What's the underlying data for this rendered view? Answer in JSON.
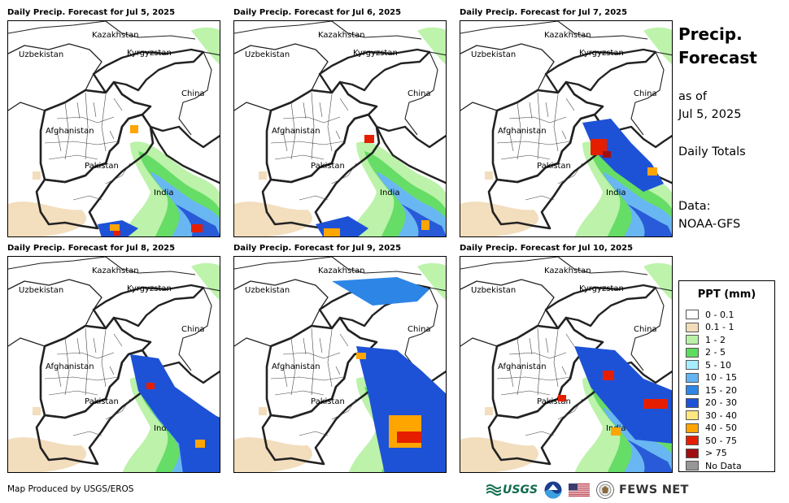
{
  "panels": [
    {
      "title": "Daily Precip. Forecast for Jul 5, 2025"
    },
    {
      "title": "Daily Precip. Forecast for Jul 6, 2025"
    },
    {
      "title": "Daily Precip. Forecast for Jul 7, 2025"
    },
    {
      "title": "Daily Precip. Forecast for Jul 8, 2025"
    },
    {
      "title": "Daily Precip. Forecast for Jul 9, 2025"
    },
    {
      "title": "Daily Precip. Forecast for Jul 10, 2025"
    }
  ],
  "map_labels": {
    "kazakhstan": "Kazakhstan",
    "uzbekistan": "Uzbekistan",
    "kyrgyzstan": "Kyrgyzstan",
    "china": "China",
    "afghanistan": "Afghanistan",
    "pakistan": "Pakistan",
    "india": "India"
  },
  "side": {
    "title_line1": "Precip.",
    "title_line2": "Forecast",
    "asof_line1": "as of",
    "asof_line2": "Jul 5, 2025",
    "totals": "Daily Totals",
    "data_line1": "Data:",
    "data_line2": "NOAA-GFS"
  },
  "legend": {
    "title": "PPT (mm)",
    "items": [
      {
        "label": "0 - 0.1",
        "color": "#ffffff"
      },
      {
        "label": "0.1 - 1",
        "color": "#f2dcba"
      },
      {
        "label": "1 - 2",
        "color": "#b9f2a6"
      },
      {
        "label": "2 - 5",
        "color": "#5edc5e"
      },
      {
        "label": "5 - 10",
        "color": "#a6ecff"
      },
      {
        "label": "10 - 15",
        "color": "#62b4f2"
      },
      {
        "label": "15 - 20",
        "color": "#2d86e6"
      },
      {
        "label": "20 - 30",
        "color": "#1e52d6"
      },
      {
        "label": "30 - 40",
        "color": "#ffe680"
      },
      {
        "label": "40 - 50",
        "color": "#ffa500"
      },
      {
        "label": "50 - 75",
        "color": "#e61e00"
      },
      {
        "label": "> 75",
        "color": "#a01010"
      },
      {
        "label": "No Data",
        "color": "#969696"
      }
    ]
  },
  "footer": {
    "credit": "Map Produced by USGS/EROS",
    "usgs_logo": "USGS",
    "fews_logo": "FEWS NET"
  }
}
